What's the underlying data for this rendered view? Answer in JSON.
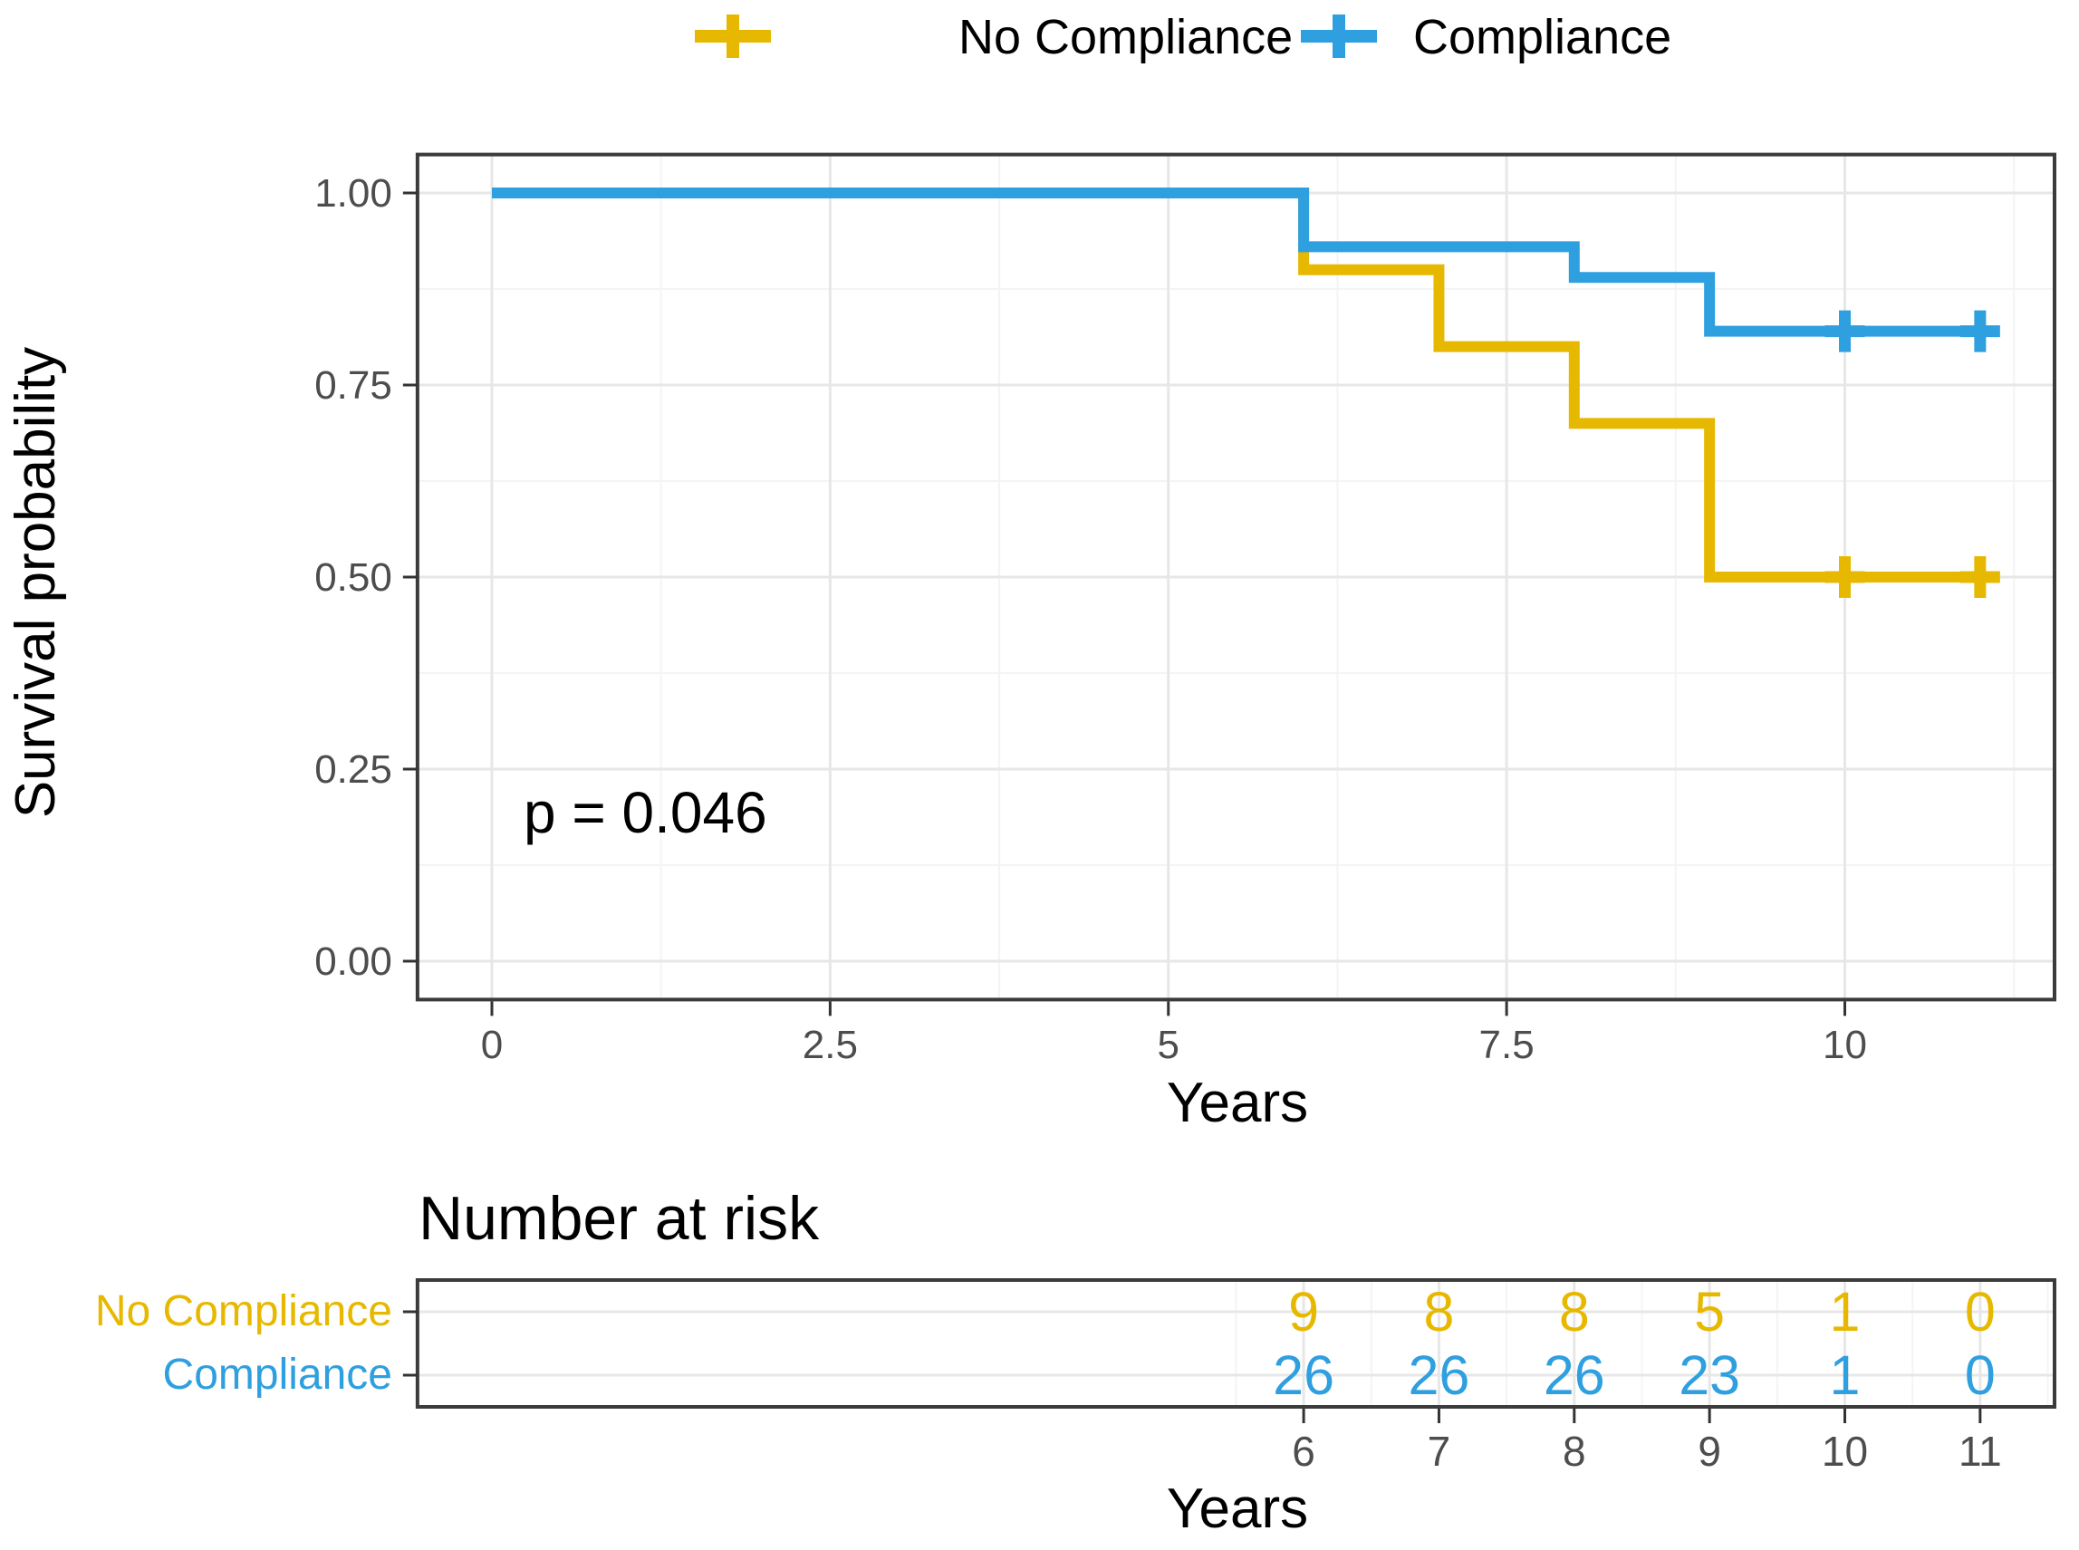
{
  "figure": {
    "legend": {
      "items": [
        {
          "label": "No Compliance",
          "color": "#E7B800"
        },
        {
          "label": "Compliance",
          "color": "#2E9FDF"
        }
      ]
    },
    "pvalue_text": "p = 0.046"
  },
  "chart_data": {
    "type": "line",
    "subtype": "kaplan-meier-step",
    "title": "",
    "xlabel": "Years",
    "ylabel": "Survival probability",
    "xlim": [
      -0.55,
      11.55
    ],
    "ylim": [
      -0.05,
      1.05
    ],
    "grid": true,
    "legend_position": "top",
    "x_major_ticks": [
      0,
      2.5,
      5,
      7.5,
      10
    ],
    "x_tick_labels": [
      "0",
      "2.5",
      "5",
      "7.5",
      "10"
    ],
    "x_minor_gridlines": [
      1.25,
      3.75,
      6.25,
      8.75,
      11.25
    ],
    "y_major_ticks": [
      1.0,
      0.75,
      0.5,
      0.25,
      0.0
    ],
    "y_tick_labels": [
      "1.00",
      "0.75",
      "0.50",
      "0.25",
      "0.00"
    ],
    "y_minor_gridlines": [
      0.875,
      0.625,
      0.375,
      0.125
    ],
    "pvalue_annotation": {
      "text": "p = 0.046"
    },
    "series": [
      {
        "name": "No Compliance",
        "color": "#E7B800",
        "steps": [
          [
            0,
            1.0
          ],
          [
            6,
            1.0
          ],
          [
            6,
            0.9
          ],
          [
            7,
            0.9
          ],
          [
            7,
            0.8
          ],
          [
            8,
            0.8
          ],
          [
            8,
            0.7
          ],
          [
            9,
            0.7
          ],
          [
            9,
            0.5
          ],
          [
            11,
            0.5
          ]
        ],
        "censors": [
          [
            10,
            0.5
          ],
          [
            11,
            0.5
          ]
        ]
      },
      {
        "name": "Compliance",
        "color": "#2E9FDF",
        "steps": [
          [
            0,
            1.0
          ],
          [
            6,
            1.0
          ],
          [
            6,
            0.93
          ],
          [
            8,
            0.93
          ],
          [
            8,
            0.89
          ],
          [
            9,
            0.89
          ],
          [
            9,
            0.82
          ],
          [
            11,
            0.82
          ]
        ],
        "censors": [
          [
            10,
            0.82
          ],
          [
            11,
            0.82
          ]
        ]
      }
    ],
    "risk_table": {
      "title": "Number at risk",
      "xlabel": "Years",
      "x_ticks": [
        6,
        7,
        8,
        9,
        10,
        11
      ],
      "x_tick_labels": [
        "6",
        "7",
        "8",
        "9",
        "10",
        "11"
      ],
      "x_minor_gridlines": [
        5.5,
        6.5,
        7.5,
        8.5,
        9.5,
        10.5,
        11.5
      ],
      "rows": [
        {
          "name": "No Compliance",
          "color": "#E7B800",
          "values": [
            "9",
            "8",
            "8",
            "5",
            "1",
            "0"
          ]
        },
        {
          "name": "Compliance",
          "color": "#2E9FDF",
          "values": [
            "26",
            "26",
            "26",
            "23",
            "1",
            "0"
          ]
        }
      ]
    }
  }
}
